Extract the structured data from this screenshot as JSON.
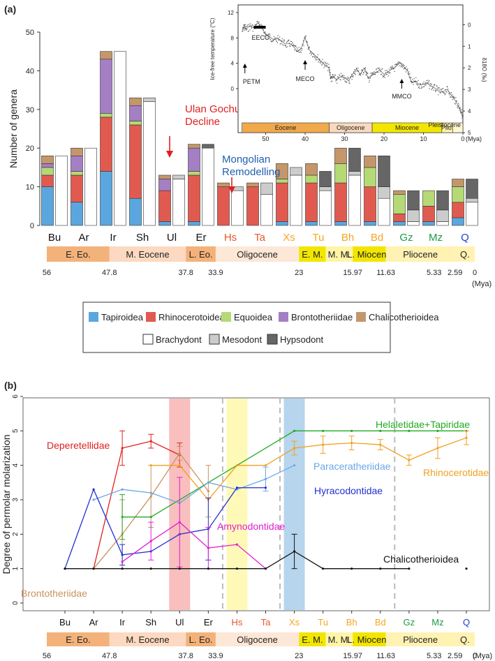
{
  "chart_data": [
    {
      "panel": "(a)",
      "type": "bar",
      "title": "",
      "ylabel": "Number of genera",
      "ylim": [
        0,
        50
      ],
      "yticks": [
        0,
        10,
        20,
        30,
        40,
        50
      ],
      "categories": [
        "Bu",
        "Ar",
        "Ir",
        "Sh",
        "Ul",
        "Er",
        "Hs",
        "Ta",
        "Xs",
        "Tu",
        "Bh",
        "Bd",
        "Gz",
        "Mz",
        "Q"
      ],
      "category_colors": [
        "#111111",
        "#111111",
        "#111111",
        "#111111",
        "#111111",
        "#111111",
        "#e8562a",
        "#e8562a",
        "#f5a623",
        "#f5a623",
        "#f5a623",
        "#f5a623",
        "#1a9a45",
        "#1a9a45",
        "#1f3fd6"
      ],
      "taxon_series": [
        {
          "name": "Tapiroidea",
          "color": "#5aa7e0",
          "values": [
            10,
            6,
            14,
            7,
            1,
            1,
            0,
            0,
            1,
            1,
            1,
            1,
            1,
            1,
            2
          ]
        },
        {
          "name": "Rhinocerotoidea",
          "color": "#e15a50",
          "values": [
            3,
            7,
            14,
            19,
            8,
            12,
            10,
            10,
            10,
            10,
            10,
            9,
            2,
            4,
            4
          ]
        },
        {
          "name": "Equoidea",
          "color": "#b5d975",
          "values": [
            2,
            1,
            1,
            1,
            0,
            1,
            0,
            0,
            1,
            2,
            5,
            5,
            5,
            4,
            4
          ]
        },
        {
          "name": "Brontotheriidae",
          "color": "#a57fc4",
          "values": [
            1,
            4,
            14,
            4,
            3,
            6,
            0,
            0,
            0,
            0,
            0,
            0,
            0,
            0,
            0
          ]
        },
        {
          "name": "Chalicotherioidea",
          "color": "#c4976b",
          "values": [
            2,
            2,
            2,
            2,
            1,
            1,
            1,
            1,
            4,
            3,
            4,
            3,
            1,
            0,
            2
          ]
        }
      ],
      "crown_series": [
        {
          "name": "Brachydont",
          "color": "#ffffff",
          "values": [
            18,
            20,
            45,
            32,
            12,
            20,
            9,
            8,
            13,
            9,
            13,
            7,
            1,
            1,
            6
          ]
        },
        {
          "name": "Mesodont",
          "color": "#cccccc",
          "values": [
            0,
            0,
            0,
            1,
            1,
            0,
            1,
            3,
            2,
            1,
            1,
            3,
            3,
            3,
            1
          ]
        },
        {
          "name": "Hypsodont",
          "color": "#666666",
          "values": [
            0,
            0,
            0,
            0,
            0,
            1,
            0,
            0,
            0,
            4,
            6,
            8,
            5,
            5,
            5
          ]
        }
      ],
      "annotations": [
        {
          "text": "Ulan Gochu\nDecline",
          "color": "#e02020",
          "near": "Ul"
        },
        {
          "text": "Mongolian\nRemodelling",
          "color": "#1f5fb0",
          "near": "Hs"
        }
      ],
      "inset": {
        "type": "line",
        "ylabel_left": "Ice-free temperature (°C)",
        "ylabel_right": "δ18O (‰)",
        "ylabel_right_html": "δ<tspan baseline-shift='super' font-size='6'>18</tspan>O (‰)",
        "left_ticks": [
          0,
          4,
          8,
          12
        ],
        "right_ticks": [
          5,
          4,
          3,
          2,
          1,
          0
        ],
        "x_ticks": [
          50,
          40,
          30,
          20,
          10,
          0
        ],
        "x_unit": "(Mya)",
        "xlim": [
          57,
          0
        ],
        "series_d18o": [
          [
            56,
            0.3
          ],
          [
            55.5,
            0.05
          ],
          [
            55,
            0.2
          ],
          [
            54,
            0.05
          ],
          [
            53,
            0.15
          ],
          [
            52,
            -0.1
          ],
          [
            51,
            0.15
          ],
          [
            50,
            0.45
          ],
          [
            49,
            0.55
          ],
          [
            48,
            0.7
          ],
          [
            47,
            0.65
          ],
          [
            46,
            0.75
          ],
          [
            45,
            0.9
          ],
          [
            44,
            0.85
          ],
          [
            43,
            1.0
          ],
          [
            42,
            1.25
          ],
          [
            41,
            1.1
          ],
          [
            40,
            0.6
          ],
          [
            39,
            1.15
          ],
          [
            38,
            1.35
          ],
          [
            37,
            1.5
          ],
          [
            36,
            1.7
          ],
          [
            35,
            1.85
          ],
          [
            34,
            2.0
          ],
          [
            33.5,
            2.5
          ],
          [
            33,
            2.4
          ],
          [
            32,
            2.55
          ],
          [
            31,
            2.4
          ],
          [
            30,
            2.45
          ],
          [
            29,
            2.6
          ],
          [
            28,
            2.3
          ],
          [
            27,
            2.05
          ],
          [
            26,
            2.3
          ],
          [
            25,
            2.0
          ],
          [
            24,
            2.5
          ],
          [
            23,
            2.3
          ],
          [
            22,
            2.2
          ],
          [
            21,
            2.1
          ],
          [
            20,
            2.3
          ],
          [
            19,
            2.2
          ],
          [
            18,
            2.05
          ],
          [
            17,
            1.95
          ],
          [
            16,
            1.75
          ],
          [
            15,
            1.95
          ],
          [
            14,
            2.15
          ],
          [
            13,
            2.7
          ],
          [
            12,
            2.6
          ],
          [
            11,
            2.8
          ],
          [
            10,
            2.75
          ],
          [
            9,
            2.7
          ],
          [
            8,
            2.85
          ],
          [
            7,
            2.95
          ],
          [
            6,
            3.1
          ],
          [
            5,
            3.1
          ],
          [
            4,
            3.0
          ],
          [
            3,
            3.25
          ],
          [
            2,
            3.5
          ],
          [
            1,
            3.8
          ],
          [
            0.5,
            4.0
          ],
          [
            0,
            4.3
          ]
        ],
        "events": [
          {
            "label": "PETM",
            "age": 55.8
          },
          {
            "label": "EECO",
            "age": 51.5
          },
          {
            "label": "MECO",
            "age": 40.0
          },
          {
            "label": "MMCO",
            "age": 15.5
          },
          {
            "label": "Pleistocene",
            "age": 2.5
          }
        ],
        "epochs": [
          {
            "name": "Eocene",
            "start": 56,
            "end": 33.9,
            "color": "#f0a94b"
          },
          {
            "name": "Oligocene",
            "start": 33.9,
            "end": 23,
            "color": "#f8d9bd"
          },
          {
            "name": "Miocene",
            "start": 23,
            "end": 5.33,
            "color": "#f2e600"
          },
          {
            "name": "Plio.",
            "start": 5.33,
            "end": 2.59,
            "color": "#fff2a8"
          },
          {
            "name": "",
            "start": 2.59,
            "end": 0,
            "color": "#fff8d2"
          }
        ]
      }
    },
    {
      "panel": "(b)",
      "type": "line",
      "ylabel": "Degree of permolar molarization",
      "ylim": [
        0,
        6
      ],
      "yticks": [
        0,
        1,
        2,
        3,
        4,
        5,
        6
      ],
      "categories": [
        "Bu",
        "Ar",
        "Ir",
        "Sh",
        "Ul",
        "Er",
        "Hs",
        "Ta",
        "Xs",
        "Tu",
        "Bh",
        "Bd",
        "Gz",
        "Mz",
        "Q"
      ],
      "shaded_bands": [
        {
          "at": "Ul",
          "color": "#f7a8a8"
        },
        {
          "at": "Hs",
          "color": "#fff7a0"
        },
        {
          "at": "Xs",
          "color": "#9fc7e6"
        }
      ],
      "dashed_lines_between": [
        [
          "Er",
          "Hs"
        ],
        [
          "Ta",
          "Xs"
        ],
        [
          "Bd",
          "Gz"
        ]
      ],
      "series": [
        {
          "name": "Deperetellidae",
          "color": "#e02020",
          "x": [
            "Ar",
            "Ir",
            "Sh",
            "Ul"
          ],
          "values": [
            1.0,
            4.5,
            4.7,
            4.3
          ],
          "err": [
            0,
            0.5,
            0.2,
            0.35
          ]
        },
        {
          "name": "Brontotheriidae",
          "color": "#c8935e",
          "x": [
            "Ar",
            "Ir",
            "Sh",
            "Ul",
            "Er"
          ],
          "values": [
            1.0,
            2.0,
            3.1,
            4.35,
            3.25
          ],
          "err": [
            0,
            1.0,
            0.9,
            0.2,
            0.75
          ]
        },
        {
          "name": "Helaletidae+Tapiridae",
          "color": "#22aa22",
          "x": [
            "Ir",
            "Sh",
            "Xs",
            "Tu",
            "Bh",
            "Bd",
            "Gz",
            "Mz",
            "Q"
          ],
          "values": [
            2.5,
            2.5,
            5.0,
            5.0,
            5.0,
            5.0,
            5.0,
            5.0,
            5.0
          ],
          "err": [
            0.65,
            0,
            0,
            0,
            0,
            0,
            0,
            0,
            0
          ]
        },
        {
          "name": "Rhinocerotidae",
          "color": "#f0a020",
          "x": [
            "Sh",
            "Ul",
            "Er",
            "Hs",
            "Ta",
            "Xs",
            "Tu",
            "Bh",
            "Bd",
            "Gz",
            "Mz",
            "Q"
          ],
          "values": [
            4.0,
            4.0,
            3.0,
            4.0,
            4.0,
            4.5,
            4.6,
            4.65,
            4.6,
            4.15,
            4.5,
            4.8
          ],
          "err": [
            0,
            0,
            0,
            0,
            0,
            0.2,
            0.25,
            0.2,
            0.15,
            0.15,
            0.3,
            0.2
          ]
        },
        {
          "name": "Paraceratheriidae",
          "color": "#6aa7e8",
          "x": [
            "Ar",
            "Ir",
            "Sh",
            "Ul",
            "Er",
            "Hs",
            "Ta",
            "Xs"
          ],
          "values": [
            3.0,
            3.3,
            3.2,
            2.9,
            3.5,
            3.3,
            3.6,
            4.0
          ],
          "err": [
            0,
            0,
            0,
            0,
            0,
            0,
            0.35,
            0
          ]
        },
        {
          "name": "Hyracodontidae",
          "color": "#1f2fd0",
          "x": [
            "Bu",
            "Ar",
            "Ir",
            "Sh",
            "Ul",
            "Er",
            "Hs",
            "Ta"
          ],
          "values": [
            1.0,
            3.3,
            1.4,
            1.5,
            2.0,
            2.15,
            3.35,
            3.35
          ],
          "err": [
            0,
            0,
            0.3,
            0,
            0,
            0.9,
            0,
            0
          ]
        },
        {
          "name": "Amynodontidae",
          "color": "#e020d0",
          "x": [
            "Ir",
            "Sh",
            "Ul",
            "Er",
            "Hs",
            "Ta"
          ],
          "values": [
            1.2,
            1.8,
            2.35,
            1.6,
            1.7,
            1.0
          ],
          "err": [
            0,
            0.55,
            1.3,
            0.6,
            0,
            0
          ]
        },
        {
          "name": "Chalicotherioidea",
          "color": "#111111",
          "x": [
            "Bu",
            "Ar",
            "Ir",
            "Sh",
            "Ul",
            "Er",
            "Hs",
            "Ta",
            "Xs",
            "Tu",
            "Bh",
            "Bd",
            "Gz",
            "Q"
          ],
          "values": [
            1.0,
            1.0,
            1.0,
            1.0,
            1.0,
            1.0,
            1.0,
            1.0,
            1.5,
            1.0,
            1.0,
            1.0,
            1.0,
            1.0
          ],
          "err": [
            0,
            0,
            0,
            0,
            0,
            0,
            0,
            0,
            0.5,
            0,
            0,
            0,
            0,
            0
          ],
          "break_before": "Q"
        }
      ]
    }
  ],
  "timescale": {
    "unit": "(Mya)",
    "stages": [
      {
        "name": "E. Eo.",
        "start": 56,
        "end": 47.8,
        "color": "#f3b27a"
      },
      {
        "name": "M. Eocene",
        "start": 47.8,
        "end": 37.8,
        "color": "#fcd9c0"
      },
      {
        "name": "L. Eo.",
        "start": 37.8,
        "end": 33.9,
        "color": "#f3b27a"
      },
      {
        "name": "Oligocene",
        "start": 33.9,
        "end": 23,
        "color": "#fde7d6"
      },
      {
        "name": "E. M.",
        "start": 23,
        "end": 19.5,
        "color": "#f2e600"
      },
      {
        "name": "M. M.",
        "start": 19.5,
        "end": 15.97,
        "color": "#fff4a8"
      },
      {
        "name": "L. Miocene",
        "start": 15.97,
        "end": 11.63,
        "color": "#f2e600"
      },
      {
        "name": "Pliocene",
        "start": 11.63,
        "end": 2.59,
        "color": "#fff2b3"
      },
      {
        "name": "Q.",
        "start": 2.59,
        "end": 0,
        "color": "#fff2b3"
      }
    ],
    "boundary_labels": [
      "56",
      "47.8",
      "37.8",
      "33.9",
      "23",
      "15.97",
      "11.63",
      "5.33",
      "2.59",
      "0"
    ]
  },
  "legend": {
    "row1": [
      {
        "name": "Tapiroidea",
        "color": "#5aa7e0"
      },
      {
        "name": "Rhinocerotoidea",
        "color": "#e15a50"
      },
      {
        "name": "Equoidea",
        "color": "#b5d975"
      },
      {
        "name": "Brontotheriidae",
        "color": "#a57fc4"
      },
      {
        "name": "Chalicotherioidea",
        "color": "#c4976b"
      }
    ],
    "row2": [
      {
        "name": "Brachydont",
        "color": "#ffffff"
      },
      {
        "name": "Mesodont",
        "color": "#cccccc"
      },
      {
        "name": "Hypsodont",
        "color": "#666666"
      }
    ]
  },
  "panel_labels": {
    "a": "(a)",
    "b": "(b)"
  }
}
